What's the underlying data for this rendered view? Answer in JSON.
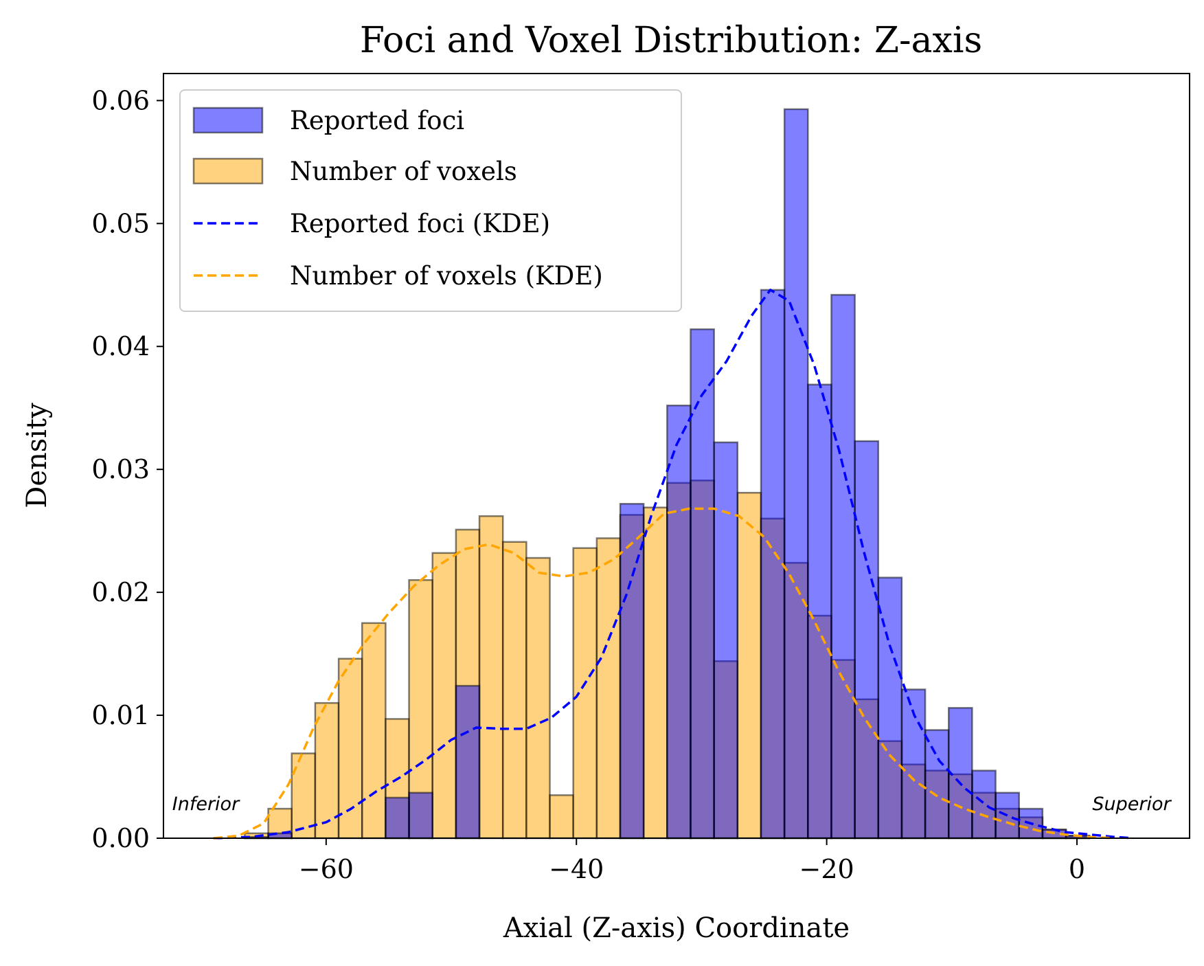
{
  "chart_data": {
    "type": "bar",
    "title": "Foci and Voxel Distribution: Z-axis",
    "xlabel": "Axial (Z-axis) Coordinate",
    "ylabel": "Density",
    "xlim": [
      -73,
      9
    ],
    "ylim": [
      0,
      0.0622
    ],
    "xticks": [
      -60,
      -40,
      -20,
      0
    ],
    "xtick_labels": [
      "−60",
      "−40",
      "−20",
      "0"
    ],
    "yticks": [
      0,
      0.01,
      0.02,
      0.03,
      0.04,
      0.05,
      0.06
    ],
    "ytick_labels": [
      "0.00",
      "0.01",
      "0.02",
      "0.03",
      "0.04",
      "0.05",
      "0.06"
    ],
    "grid": false,
    "legend_position": "top-left",
    "bin_edges": [
      -66.5,
      -64.625,
      -62.75,
      -60.875,
      -59.0,
      -57.125,
      -55.25,
      -53.375,
      -51.5,
      -49.625,
      -47.75,
      -45.875,
      -44.0,
      -42.125,
      -40.25,
      -38.375,
      -36.5,
      -34.625,
      -32.75,
      -30.875,
      -29.0,
      -27.125,
      -25.25,
      -23.375,
      -21.5,
      -19.625,
      -17.75,
      -15.875,
      -14.0,
      -12.125,
      -10.25,
      -8.375,
      -6.5,
      -4.625,
      -2.75,
      -0.875,
      1.0
    ],
    "series": [
      {
        "name": "Reported foci",
        "kind": "histogram",
        "color": "#0000ff",
        "opacity": 0.5,
        "values": [
          0.0001,
          0.0004,
          0.0,
          0.0,
          0.0,
          0.0,
          0.0033,
          0.0037,
          0.0,
          0.0124,
          0.0,
          0.0,
          0.0,
          0.0,
          0.0,
          0.0,
          0.0272,
          0.0,
          0.0352,
          0.0414,
          0.0322,
          0.0,
          0.0446,
          0.0593,
          0.0369,
          0.0442,
          0.0323,
          0.0212,
          0.0121,
          0.0088,
          0.0106,
          0.0055,
          0.0037,
          0.0024,
          0.0007,
          0.0002
        ]
      },
      {
        "name": "Number of voxels",
        "kind": "histogram",
        "color": "#ffa500",
        "opacity": 0.5,
        "values": [
          0.0004,
          0.0024,
          0.0069,
          0.011,
          0.0146,
          0.0175,
          0.0097,
          0.021,
          0.0232,
          0.0251,
          0.0262,
          0.0241,
          0.0228,
          0.0035,
          0.0236,
          0.0244,
          0.0263,
          0.0269,
          0.0289,
          0.0291,
          0.0144,
          0.0281,
          0.026,
          0.0224,
          0.0181,
          0.0145,
          0.0113,
          0.0079,
          0.006,
          0.0055,
          0.0052,
          0.0037,
          0.0024,
          0.0017,
          0.0007,
          0.0002
        ]
      },
      {
        "name": "Reported foci (KDE)",
        "kind": "line",
        "style": "dashed",
        "color": "#0000ff",
        "x": [
          -69,
          -66,
          -63,
          -60,
          -58,
          -56,
          -54,
          -52,
          -50,
          -48,
          -46,
          -44,
          -42,
          -40,
          -38,
          -36,
          -34,
          -32,
          -30,
          -28,
          -26,
          -24.5,
          -23,
          -21,
          -19,
          -17,
          -15,
          -13,
          -11,
          -9,
          -7,
          -5,
          -3,
          -1,
          1,
          3,
          4.5
        ],
        "y": [
          0.0,
          0.0001,
          0.0005,
          0.0013,
          0.0024,
          0.0038,
          0.005,
          0.0064,
          0.008,
          0.009,
          0.0089,
          0.0089,
          0.0098,
          0.0115,
          0.0147,
          0.0198,
          0.0263,
          0.032,
          0.036,
          0.0388,
          0.0425,
          0.0446,
          0.0437,
          0.0385,
          0.0315,
          0.0232,
          0.0158,
          0.01,
          0.0063,
          0.0041,
          0.0025,
          0.0016,
          0.001,
          0.0005,
          0.0003,
          0.0001,
          0.0
        ]
      },
      {
        "name": "Number of voxels (KDE)",
        "kind": "line",
        "style": "dashed",
        "color": "#ffa500",
        "x": [
          -69,
          -67,
          -65,
          -63,
          -61,
          -59,
          -57,
          -55,
          -53,
          -51,
          -49,
          -47,
          -45,
          -43,
          -41,
          -39,
          -37,
          -35,
          -33,
          -31,
          -29,
          -27,
          -25,
          -23,
          -21,
          -19,
          -17,
          -15,
          -13,
          -11,
          -9,
          -7,
          -5,
          -3,
          -1,
          1,
          3
        ],
        "y": [
          0.0,
          0.0002,
          0.0012,
          0.0044,
          0.009,
          0.0128,
          0.0158,
          0.0183,
          0.0205,
          0.0222,
          0.0235,
          0.0239,
          0.0232,
          0.0216,
          0.0213,
          0.0216,
          0.0227,
          0.0245,
          0.0264,
          0.0268,
          0.0268,
          0.0262,
          0.0245,
          0.0215,
          0.0177,
          0.0135,
          0.0098,
          0.0068,
          0.0047,
          0.0033,
          0.0024,
          0.0017,
          0.0011,
          0.0006,
          0.0003,
          0.0001,
          0.0
        ]
      }
    ],
    "annotations": [
      {
        "text": "Inferior",
        "x": -72.3,
        "y": 0.0023,
        "align": "left"
      },
      {
        "text": "Superior",
        "x": 7.5,
        "y": 0.0023,
        "align": "right"
      }
    ]
  }
}
